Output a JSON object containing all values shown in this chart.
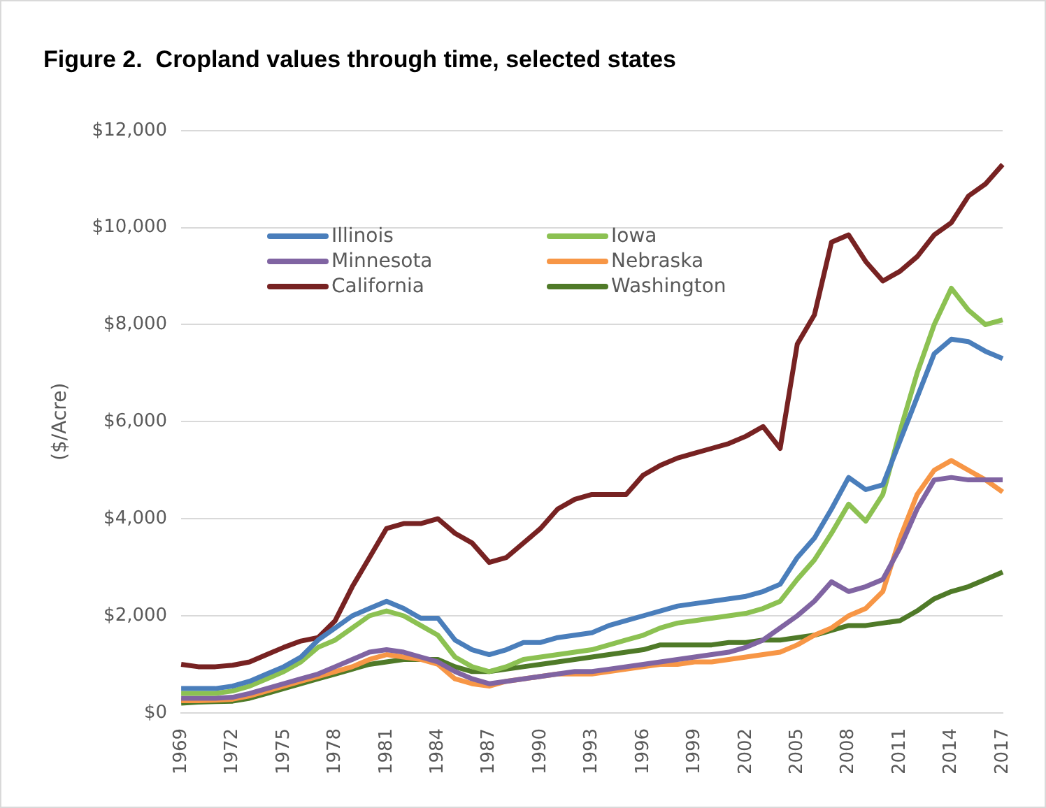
{
  "chart_data": {
    "type": "line",
    "title": "Figure 2.  Cropland values through time, selected states",
    "ylabel": "($/Acre)",
    "categories": [
      "1969",
      null,
      null,
      "1972",
      null,
      null,
      "1975",
      null,
      null,
      "1978",
      null,
      null,
      "1981",
      null,
      null,
      "1984",
      null,
      null,
      "1987",
      null,
      null,
      "1990",
      null,
      null,
      "1993",
      null,
      null,
      "1996",
      null,
      null,
      "1999",
      null,
      null,
      "2002",
      null,
      null,
      "2005",
      null,
      null,
      "2008",
      null,
      null,
      "2011",
      null,
      null,
      "2014",
      null,
      null,
      "2017"
    ],
    "ylim": [
      0,
      12000
    ],
    "yticks": [
      {
        "value": 0,
        "label": "$0"
      },
      {
        "value": 2000,
        "label": "$2,000"
      },
      {
        "value": 4000,
        "label": "$4,000"
      },
      {
        "value": 6000,
        "label": "$6,000"
      },
      {
        "value": 8000,
        "label": "$8,000"
      },
      {
        "value": 10000,
        "label": "$10,000"
      },
      {
        "value": 12000,
        "label": "$12,000"
      }
    ],
    "grid": "y",
    "legend": "top left",
    "marker": "none",
    "line_style": "solid",
    "series": [
      {
        "name": "Illinois",
        "color": "#4a7ebb",
        "values": [
          500,
          500,
          500,
          550,
          650,
          800,
          950,
          1150,
          1500,
          1750,
          2000,
          2150,
          2300,
          2150,
          1950,
          1950,
          1500,
          1300,
          1200,
          1300,
          1450,
          1450,
          1550,
          1600,
          1650,
          1800,
          1900,
          2000,
          2100,
          2200,
          2250,
          2300,
          2350,
          2400,
          2500,
          2650,
          3200,
          3600,
          4200,
          4850,
          4600,
          4700,
          5600,
          6500,
          7400,
          7700,
          7650,
          7450,
          7300
        ]
      },
      {
        "name": "Iowa",
        "color": "#8cc152",
        "values": [
          400,
          400,
          400,
          450,
          550,
          700,
          850,
          1050,
          1350,
          1500,
          1750,
          2000,
          2100,
          2000,
          1800,
          1600,
          1150,
          950,
          850,
          950,
          1100,
          1150,
          1200,
          1250,
          1300,
          1400,
          1500,
          1600,
          1750,
          1850,
          1900,
          1950,
          2000,
          2050,
          2150,
          2300,
          2750,
          3150,
          3700,
          4300,
          3950,
          4500,
          5800,
          7000,
          8000,
          8750,
          8300,
          8000,
          8100
        ]
      },
      {
        "name": "Minnesota",
        "color": "#8064a2",
        "values": [
          300,
          300,
          300,
          320,
          400,
          500,
          600,
          700,
          800,
          950,
          1100,
          1250,
          1300,
          1250,
          1150,
          1050,
          850,
          700,
          600,
          650,
          700,
          750,
          800,
          850,
          850,
          900,
          950,
          1000,
          1050,
          1100,
          1150,
          1200,
          1250,
          1350,
          1500,
          1750,
          2000,
          2300,
          2700,
          2500,
          2600,
          2750,
          3400,
          4200,
          4800,
          4850,
          4800,
          4800,
          4800
        ]
      },
      {
        "name": "Nebraska",
        "color": "#f79646",
        "values": [
          250,
          250,
          260,
          280,
          350,
          450,
          550,
          650,
          750,
          850,
          950,
          1100,
          1200,
          1150,
          1100,
          1000,
          700,
          600,
          550,
          650,
          700,
          750,
          800,
          800,
          800,
          850,
          900,
          950,
          1000,
          1000,
          1050,
          1050,
          1100,
          1150,
          1200,
          1250,
          1400,
          1600,
          1750,
          2000,
          2150,
          2500,
          3600,
          4500,
          5000,
          5200,
          5000,
          4800,
          4550
        ]
      },
      {
        "name": "California",
        "color": "#772222",
        "values": [
          1000,
          950,
          950,
          980,
          1050,
          1200,
          1350,
          1480,
          1550,
          1900,
          2600,
          3200,
          3800,
          3900,
          3900,
          4000,
          3700,
          3500,
          3100,
          3200,
          3500,
          3800,
          4200,
          4400,
          4500,
          4500,
          4500,
          4900,
          5100,
          5250,
          5350,
          5450,
          5550,
          5700,
          5900,
          5450,
          7600,
          8200,
          9700,
          9850,
          9300,
          8900,
          9100,
          9400,
          9850,
          10100,
          10650,
          10900,
          11300
        ]
      },
      {
        "name": "Washington",
        "color": "#4f7a28",
        "values": [
          200,
          220,
          230,
          240,
          300,
          400,
          500,
          600,
          700,
          800,
          900,
          1000,
          1050,
          1100,
          1100,
          1100,
          950,
          850,
          850,
          900,
          950,
          1000,
          1050,
          1100,
          1150,
          1200,
          1250,
          1300,
          1400,
          1400,
          1400,
          1400,
          1450,
          1450,
          1500,
          1500,
          1550,
          1600,
          1700,
          1800,
          1800,
          1850,
          1900,
          2100,
          2350,
          2500,
          2600,
          2750,
          2900
        ]
      }
    ]
  }
}
